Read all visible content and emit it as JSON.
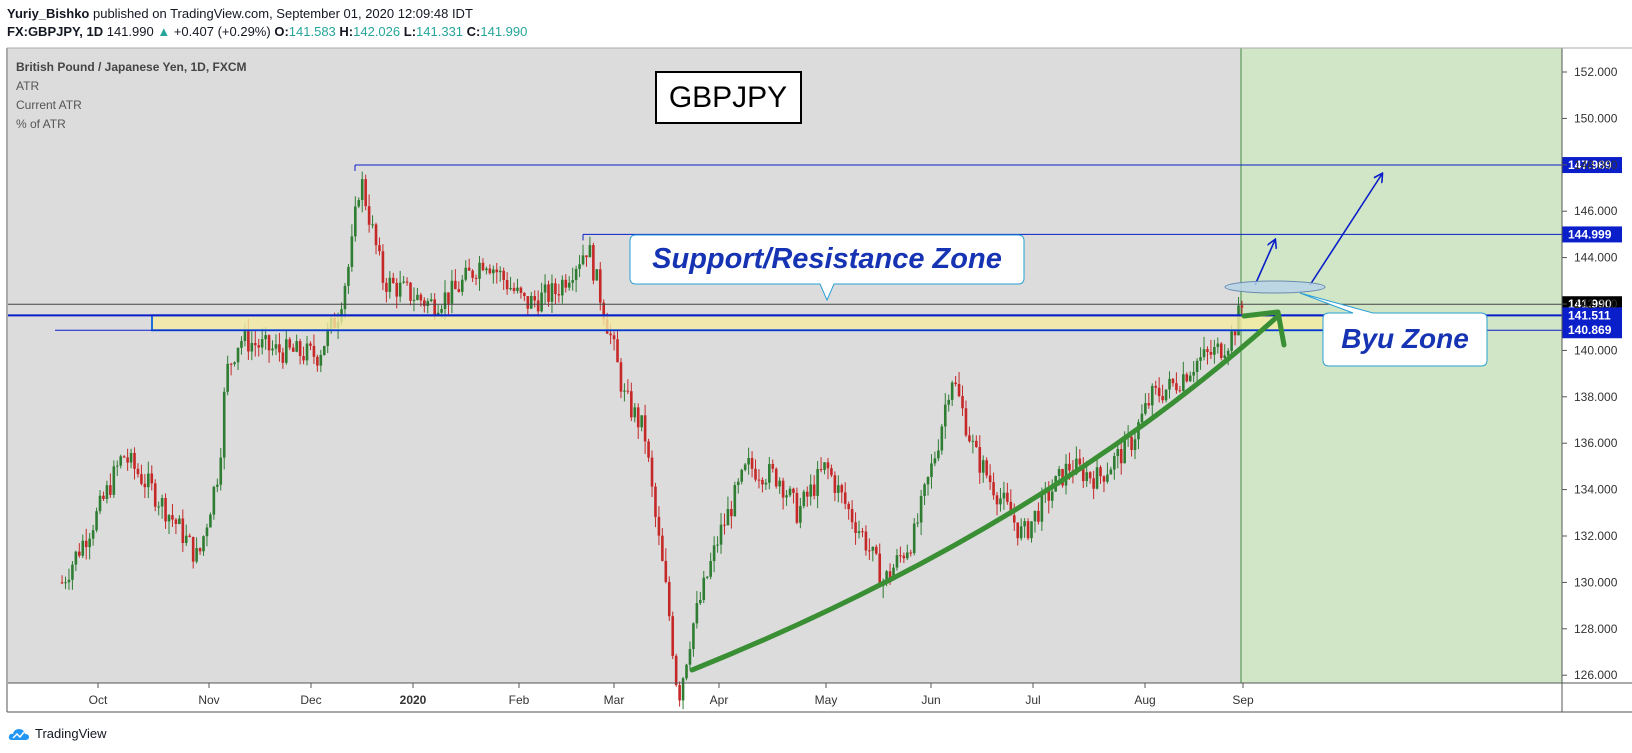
{
  "header": {
    "author": "Yuriy_Bishko",
    "published_text": " published on TradingView.com, September 01, 2020 12:09:48 IDT",
    "symbol": "FX:GBPJPY, 1D",
    "last_price": "141.990",
    "change_arrow": "▲",
    "change": "+0.407 (+0.29%)",
    "o_label": "O:",
    "o_value": "141.583",
    "h_label": "H:",
    "h_value": "142.026",
    "l_label": "L:",
    "l_value": "141.331",
    "c_label": "C:",
    "c_value": "141.990"
  },
  "legend": {
    "instrument": "British Pound / Japanese Yen, 1D, FXCM",
    "indicators": [
      "ATR",
      "Current ATR",
      "% of ATR"
    ]
  },
  "annotations": {
    "title_box": "GBPJPY",
    "zone_callout": "Support/Resistance Zone",
    "buy_callout": "Byu Zone"
  },
  "footer": {
    "brand": "TradingView"
  },
  "colors": {
    "background": "#dcdcdc",
    "bull": "#2e7d32",
    "bear": "#c62828",
    "level_line": "#0a1fc9",
    "zone_fill": "#f5eba0",
    "forecast_fill": "#d1e6c6",
    "arrow_green": "#3a8f35",
    "callout_text": "#1533b3"
  },
  "chart_data": {
    "type": "candlestick",
    "symbol": "FX:GBPJPY",
    "timeframe": "1D",
    "ylim": [
      124.0,
      152.5
    ],
    "y_ticks": [
      126,
      128,
      130,
      132,
      134,
      136,
      138,
      140,
      142,
      144,
      146,
      148,
      150,
      152
    ],
    "y_tick_labels": [
      "126.000",
      "128.000",
      "130.000",
      "132.000",
      "134.000",
      "136.000",
      "138.000",
      "140.000",
      "142.000",
      "144.000",
      "146.000",
      "148.000",
      "150.000",
      "152.000"
    ],
    "x_labels": [
      "Oct",
      "Nov",
      "Dec",
      "2020",
      "Feb",
      "Mar",
      "Apr",
      "May",
      "Jun",
      "Jul",
      "Aug",
      "Sep"
    ],
    "price_levels": [
      {
        "label": "147.989",
        "value": 147.989
      },
      {
        "label": "144.999",
        "value": 144.999
      },
      {
        "label": "141.990",
        "value": 141.99,
        "current": true
      },
      {
        "label": "141.511",
        "value": 141.511
      },
      {
        "label": "140.869",
        "value": 140.869
      }
    ],
    "support_resistance_zone": [
      140.869,
      141.511
    ],
    "anchors": [
      {
        "t": "Sep 20",
        "p": 130.0
      },
      {
        "t": "Oct 1",
        "p": 133.0
      },
      {
        "t": "Oct 8",
        "p": 135.5
      },
      {
        "t": "Oct 16",
        "p": 134.0
      },
      {
        "t": "Oct 23",
        "p": 132.5
      },
      {
        "t": "Oct 29",
        "p": 131.0
      },
      {
        "t": "Nov 4",
        "p": 135.0
      },
      {
        "t": "Nov 6",
        "p": 139.0
      },
      {
        "t": "Nov 10",
        "p": 140.5
      },
      {
        "t": "Nov 20",
        "p": 140.0
      },
      {
        "t": "Dec 3",
        "p": 139.8
      },
      {
        "t": "Dec 9",
        "p": 141.5
      },
      {
        "t": "Dec 13",
        "p": 144.0
      },
      {
        "t": "Dec 16",
        "p": 147.5
      },
      {
        "t": "Dec 23",
        "p": 143.0
      },
      {
        "t": "Jan 6",
        "p": 142.0
      },
      {
        "t": "Jan 13",
        "p": 142.5
      },
      {
        "t": "Jan 22",
        "p": 144.0
      },
      {
        "t": "Feb 3",
        "p": 142.0
      },
      {
        "t": "Feb 12",
        "p": 142.5
      },
      {
        "t": "Feb 22",
        "p": 144.5
      },
      {
        "t": "Mar 1",
        "p": 140.0
      },
      {
        "t": "Mar 4",
        "p": 138.0
      },
      {
        "t": "Mar 10",
        "p": 136.5
      },
      {
        "t": "Mar 13",
        "p": 133.0
      },
      {
        "t": "Mar 17",
        "p": 129.0
      },
      {
        "t": "Mar 20",
        "p": 125.0
      },
      {
        "t": "Mar 24",
        "p": 128.0
      },
      {
        "t": "Apr 1",
        "p": 132.0
      },
      {
        "t": "Apr 9",
        "p": 135.0
      },
      {
        "t": "Apr 18",
        "p": 134.5
      },
      {
        "t": "Apr 23",
        "p": 133.0
      },
      {
        "t": "May 1",
        "p": 135.0
      },
      {
        "t": "May 8",
        "p": 133.0
      },
      {
        "t": "May 12",
        "p": 132.0
      },
      {
        "t": "May 18",
        "p": 130.0
      },
      {
        "t": "May 27",
        "p": 132.0
      },
      {
        "t": "Jun 3",
        "p": 136.0
      },
      {
        "t": "Jun 7",
        "p": 139.0
      },
      {
        "t": "Jun 14",
        "p": 135.5
      },
      {
        "t": "Jun 20",
        "p": 134.0
      },
      {
        "t": "Jun 28",
        "p": 132.0
      },
      {
        "t": "Jul 4",
        "p": 133.5
      },
      {
        "t": "Jul 11",
        "p": 135.0
      },
      {
        "t": "Jul 19",
        "p": 134.5
      },
      {
        "t": "Jul 28",
        "p": 136.0
      },
      {
        "t": "Aug 3",
        "p": 138.0
      },
      {
        "t": "Aug 10",
        "p": 138.5
      },
      {
        "t": "Aug 17",
        "p": 139.5
      },
      {
        "t": "Aug 24",
        "p": 140.0
      },
      {
        "t": "Aug 28",
        "p": 140.5
      },
      {
        "t": "Sep 1",
        "p": 141.99
      }
    ]
  }
}
